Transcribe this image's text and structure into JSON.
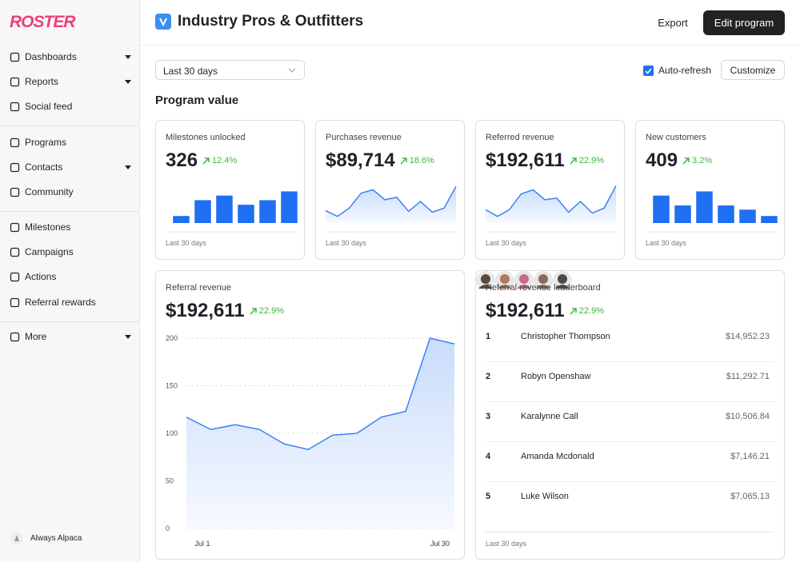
{
  "sidebar": {
    "logo": "ROSTER",
    "groups": [
      [
        {
          "label": "Dashboards",
          "caret": true
        },
        {
          "label": "Reports",
          "caret": true
        },
        {
          "label": "Social feed",
          "caret": false
        }
      ],
      [
        {
          "label": "Programs",
          "caret": false
        },
        {
          "label": "Contacts",
          "caret": true
        },
        {
          "label": "Community",
          "caret": false
        }
      ],
      [
        {
          "label": "Milestones",
          "caret": false
        },
        {
          "label": "Campaigns",
          "caret": false
        },
        {
          "label": "Actions",
          "caret": false
        },
        {
          "label": "Referral rewards",
          "caret": false
        }
      ],
      [
        {
          "label": "More",
          "caret": true
        }
      ]
    ],
    "footer": "Always Alpaca"
  },
  "header": {
    "title": "Industry Pros & Outfitters",
    "export": "Export",
    "edit": "Edit program"
  },
  "toolbar": {
    "range": "Last 30 days",
    "auto_refresh": "Auto-refresh",
    "checked": true,
    "customize": "Customize"
  },
  "section_title": "Program value",
  "kpis": [
    {
      "title": "Milestones unlocked",
      "value": "326",
      "change": "12.4%",
      "footer": "Last 30 days",
      "chart": {
        "type": "bar",
        "values": [
          20,
          65,
          78,
          52,
          65,
          90
        ],
        "ylim": [
          0,
          100
        ],
        "color": "#1f6ff2"
      }
    },
    {
      "title": "Purchases revenue",
      "value": "$89,714",
      "change": "18.6%",
      "footer": "Last 30 days",
      "chart": {
        "type": "line",
        "values": [
          15,
          8,
          18,
          36,
          40,
          28,
          31,
          14,
          26,
          13,
          18,
          44
        ],
        "ylim": [
          0,
          50
        ],
        "color": "#3b82f6"
      }
    },
    {
      "title": "Referred revenue",
      "value": "$192,611",
      "change": "22.9%",
      "footer": "Last 30 days",
      "chart": {
        "type": "line",
        "values": [
          16,
          8,
          16,
          35,
          40,
          28,
          30,
          13,
          26,
          12,
          18,
          45
        ],
        "ylim": [
          0,
          50
        ],
        "color": "#3b82f6"
      }
    },
    {
      "title": "New customers",
      "value": "409",
      "change": "3.2%",
      "footer": "Last 30 days",
      "chart": {
        "type": "bar",
        "values": [
          78,
          50,
          90,
          50,
          38,
          20
        ],
        "ylim": [
          0,
          100
        ],
        "color": "#1f6ff2"
      }
    }
  ],
  "referral": {
    "title": "Referral revenue",
    "value": "$192,611",
    "change": "22.9%",
    "chart": {
      "type": "line",
      "categories": [
        "Jul 1",
        null,
        null,
        null,
        null,
        null,
        null,
        null,
        null,
        null,
        null,
        "Jul 30"
      ],
      "values": [
        117,
        104,
        109,
        104,
        89,
        83,
        98,
        100,
        117,
        123,
        200,
        194
      ],
      "ylim": [
        0,
        200
      ],
      "yticks": [
        0,
        50,
        100,
        150,
        200
      ],
      "grid": true,
      "color": "#3b82f6"
    }
  },
  "leaderboard": {
    "title": "Referral revenue leaderboard",
    "value": "$192,611",
    "change": "22.9%",
    "rows": [
      {
        "rank": 1,
        "name": "Christopher Thompson",
        "amount": "$14,952.23"
      },
      {
        "rank": 2,
        "name": "Robyn Openshaw",
        "amount": "$11,292.71"
      },
      {
        "rank": 3,
        "name": "Karalynne Call",
        "amount": "$10,506.84"
      },
      {
        "rank": 4,
        "name": "Amanda Mcdonald",
        "amount": "$7,146.21"
      },
      {
        "rank": 5,
        "name": "Luke Wilson",
        "amount": "$7,065.13"
      }
    ],
    "footer": "Last 30 days"
  }
}
